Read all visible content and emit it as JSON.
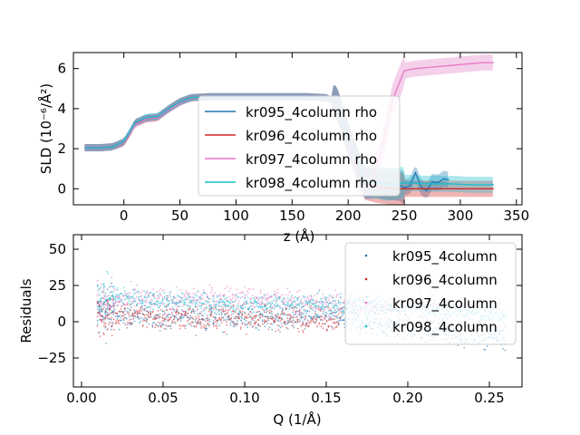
{
  "chart_data": [
    {
      "type": "line",
      "xlabel": "z (Å)",
      "ylabel": "SLD (10⁻⁶/Å²)",
      "xlim": [
        -45,
        355
      ],
      "ylim": [
        -0.8,
        6.8
      ],
      "xticks": [
        -50,
        0,
        50,
        100,
        150,
        200,
        250,
        300,
        350
      ],
      "yticks": [
        0,
        2,
        4,
        6
      ],
      "grid": false,
      "legend_position": "center",
      "series": [
        {
          "name": "kr095_4column rho",
          "color": "#1f77b4",
          "x": [
            -35,
            -20,
            -10,
            0,
            5,
            10,
            20,
            30,
            40,
            50,
            60,
            80,
            120,
            160,
            180,
            190,
            200,
            215,
            225,
            235,
            245,
            250,
            255,
            260,
            265,
            270,
            275,
            280,
            285,
            290
          ],
          "y": [
            2.05,
            2.05,
            2.1,
            2.35,
            2.8,
            3.3,
            3.55,
            3.6,
            4.0,
            4.35,
            4.55,
            4.6,
            4.6,
            4.6,
            4.55,
            4.3,
            2.5,
            0.3,
            0.35,
            0.25,
            0.2,
            0.05,
            0.15,
            0.8,
            0.1,
            -0.1,
            0.35,
            0.3,
            0.5,
            0.45
          ]
        },
        {
          "name": "kr096_4column rho",
          "color": "#d62728",
          "x": [
            -35,
            -20,
            -10,
            0,
            5,
            10,
            20,
            30,
            40,
            50,
            60,
            80,
            120,
            160,
            180,
            190,
            200,
            215,
            225,
            240,
            260,
            280,
            300,
            320,
            330
          ],
          "y": [
            2.05,
            2.05,
            2.1,
            2.3,
            2.75,
            3.3,
            3.5,
            3.55,
            4.0,
            4.35,
            4.55,
            4.6,
            4.6,
            4.6,
            4.55,
            4.3,
            2.5,
            0.25,
            0.1,
            0.0,
            0.0,
            0.0,
            0.0,
            0.0,
            0.0
          ]
        },
        {
          "name": "kr097_4column rho",
          "color": "#e377c2",
          "x": [
            -35,
            -20,
            -10,
            0,
            10,
            20,
            30,
            40,
            50,
            60,
            80,
            120,
            160,
            180,
            190,
            200,
            210,
            220,
            230,
            240,
            250,
            260,
            270,
            280,
            290,
            300,
            310,
            320,
            330
          ],
          "y": [
            2.05,
            2.05,
            2.1,
            2.3,
            3.2,
            3.5,
            3.55,
            3.95,
            4.3,
            4.55,
            4.6,
            4.6,
            4.6,
            4.55,
            4.3,
            2.5,
            0.5,
            0.2,
            2.0,
            4.5,
            5.9,
            6.0,
            6.05,
            6.1,
            6.15,
            6.2,
            6.25,
            6.3,
            6.3
          ]
        },
        {
          "name": "kr098_4column rho",
          "color": "#17becf",
          "x": [
            -35,
            -20,
            -10,
            0,
            10,
            20,
            30,
            40,
            50,
            60,
            80,
            120,
            160,
            180,
            190,
            200,
            215,
            225,
            235,
            250,
            270,
            290,
            310,
            330
          ],
          "y": [
            2.05,
            2.05,
            2.1,
            2.35,
            3.3,
            3.55,
            3.6,
            4.0,
            4.35,
            4.55,
            4.6,
            4.6,
            4.6,
            4.55,
            4.3,
            2.5,
            0.3,
            0.3,
            0.2,
            0.3,
            0.25,
            0.25,
            0.2,
            0.2
          ]
        }
      ]
    },
    {
      "type": "scatter",
      "xlabel": "Q (1/Å)",
      "ylabel": "Residuals",
      "xlim": [
        -0.005,
        0.27
      ],
      "ylim": [
        -45,
        60
      ],
      "xticks": [
        0.0,
        0.05,
        0.1,
        0.15,
        0.2,
        0.25
      ],
      "xtick_labels": [
        "0.00",
        "0.05",
        "0.10",
        "0.15",
        "0.20",
        "0.25"
      ],
      "yticks": [
        -25,
        0,
        25,
        50
      ],
      "grid": false,
      "legend_position": "upper right",
      "series": [
        {
          "name": "kr095_4column",
          "color": "#1f77b4",
          "q_range": [
            0.01,
            0.26
          ],
          "center": [
            [
              0.01,
              5
            ],
            [
              0.05,
              3
            ],
            [
              0.1,
              2
            ],
            [
              0.15,
              3
            ],
            [
              0.2,
              -5
            ],
            [
              0.26,
              -10
            ]
          ],
          "spread": 10
        },
        {
          "name": "kr096_4column",
          "color": "#d62728",
          "q_range": [
            0.01,
            0.16
          ],
          "center": [
            [
              0.01,
              5
            ],
            [
              0.05,
              3
            ],
            [
              0.1,
              3
            ],
            [
              0.16,
              2
            ]
          ],
          "spread": 10
        },
        {
          "name": "kr097_4column",
          "color": "#e377c2",
          "q_range": [
            0.01,
            0.22
          ],
          "center": [
            [
              0.01,
              15
            ],
            [
              0.05,
              15
            ],
            [
              0.1,
              16
            ],
            [
              0.15,
              12
            ],
            [
              0.22,
              12
            ]
          ],
          "spread": 10
        },
        {
          "name": "kr098_4column",
          "color": "#17becf",
          "q_range": [
            0.01,
            0.26
          ],
          "center": [
            [
              0.01,
              18
            ],
            [
              0.05,
              15
            ],
            [
              0.1,
              12
            ],
            [
              0.15,
              12
            ],
            [
              0.2,
              10
            ],
            [
              0.26,
              5
            ]
          ],
          "spread": 8
        }
      ]
    }
  ]
}
